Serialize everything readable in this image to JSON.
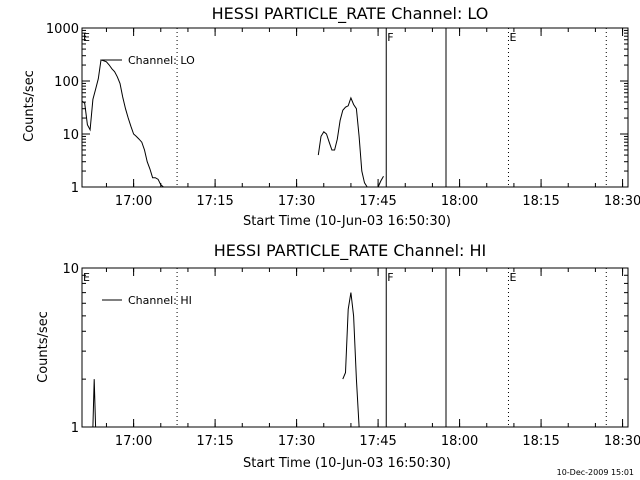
{
  "footer_date": "10-Dec-2009 15:01",
  "chart_data": [
    {
      "type": "line",
      "title": "HESSI PARTICLE_RATE Channel: LO",
      "xlabel": "Start Time (10-Jun-03 16:50:30)",
      "ylabel": "Counts/sec",
      "yscale": "log",
      "ylim": [
        1,
        1000
      ],
      "yticks": [
        "1",
        "10",
        "100",
        "1000"
      ],
      "xlim": [
        "16:50:30",
        "18:31:00"
      ],
      "xticks": [
        "17:00",
        "17:15",
        "17:30",
        "17:45",
        "18:00",
        "18:15",
        "18:30"
      ],
      "grid": false,
      "legend_position": "top-left",
      "series": [
        {
          "name": "Channel: LO",
          "segments": [
            {
              "x": [
                "16:50:30",
                "16:51:00",
                "16:51:30",
                "16:52:00",
                "16:52:30",
                "16:53:00",
                "16:53:30",
                "16:54:00",
                "16:54:30",
                "16:55:00",
                "16:55:30",
                "16:56:00",
                "16:56:30",
                "16:57:00",
                "16:57:30",
                "16:58:00",
                "16:58:30",
                "16:59:00",
                "16:59:30",
                "17:00:00",
                "17:00:30",
                "17:01:00",
                "17:01:30",
                "17:02:00",
                "17:02:30",
                "17:03:00",
                "17:03:30",
                "17:04:00",
                "17:04:30",
                "17:05:00",
                "17:05:30"
              ],
              "y": [
                42,
                38,
                15,
                12,
                45,
                70,
                110,
                250,
                240,
                230,
                200,
                170,
                150,
                120,
                90,
                50,
                30,
                20,
                14,
                10,
                9,
                8,
                7,
                5,
                3,
                2.2,
                1.5,
                1.5,
                1.4,
                1.1,
                1.0
              ]
            },
            {
              "x": [
                "17:34:00",
                "17:34:30",
                "17:35:00",
                "17:35:30",
                "17:36:00",
                "17:36:30",
                "17:37:00",
                "17:37:30",
                "17:38:00",
                "17:38:30",
                "17:39:00",
                "17:39:30",
                "17:40:00",
                "17:40:30",
                "17:41:00",
                "17:41:30",
                "17:42:00",
                "17:42:30",
                "17:43:00"
              ],
              "y": [
                4,
                9,
                11,
                10,
                7,
                5,
                5,
                8,
                18,
                28,
                32,
                34,
                48,
                36,
                30,
                9,
                2,
                1.2,
                1.0
              ]
            },
            {
              "x": [
                "17:45:00",
                "17:45:30",
                "17:46:00"
              ],
              "y": [
                1.0,
                1.3,
                1.6
              ]
            }
          ]
        }
      ],
      "event_lines": [
        {
          "time": "16:50:30",
          "style": "dotted",
          "label": "E"
        },
        {
          "time": "17:08:00",
          "style": "dotted",
          "label": ""
        },
        {
          "time": "17:46:30",
          "style": "solid",
          "label": "F"
        },
        {
          "time": "17:57:30",
          "style": "solid",
          "label": ""
        },
        {
          "time": "18:09:00",
          "style": "dotted",
          "label": "E"
        },
        {
          "time": "18:27:00",
          "style": "dotted",
          "label": ""
        }
      ]
    },
    {
      "type": "line",
      "title": "HESSI PARTICLE_RATE Channel: HI",
      "xlabel": "Start Time (10-Jun-03 16:50:30)",
      "ylabel": "Counts/sec",
      "yscale": "log",
      "ylim": [
        1,
        10
      ],
      "yticks": [
        "1",
        "10"
      ],
      "xlim": [
        "16:50:30",
        "18:31:00"
      ],
      "xticks": [
        "17:00",
        "17:15",
        "17:30",
        "17:45",
        "18:00",
        "18:15",
        "18:30"
      ],
      "grid": false,
      "legend_position": "top-left",
      "series": [
        {
          "name": "Channel: HI",
          "segments": [
            {
              "x": [
                "16:52:30",
                "16:52:45",
                "16:53:00"
              ],
              "y": [
                1.0,
                2.0,
                1.0
              ]
            },
            {
              "x": [
                "17:38:30",
                "17:39:00",
                "17:39:30",
                "17:40:00",
                "17:40:30",
                "17:41:00",
                "17:41:30"
              ],
              "y": [
                2.0,
                2.2,
                5.5,
                7.0,
                5.0,
                2.0,
                1.0
              ]
            }
          ]
        }
      ],
      "event_lines": [
        {
          "time": "16:50:30",
          "style": "dotted",
          "label": "E"
        },
        {
          "time": "17:08:00",
          "style": "dotted",
          "label": ""
        },
        {
          "time": "17:46:30",
          "style": "solid",
          "label": "F"
        },
        {
          "time": "17:57:30",
          "style": "solid",
          "label": ""
        },
        {
          "time": "18:09:00",
          "style": "dotted",
          "label": "E"
        },
        {
          "time": "18:27:00",
          "style": "dotted",
          "label": ""
        }
      ]
    }
  ]
}
